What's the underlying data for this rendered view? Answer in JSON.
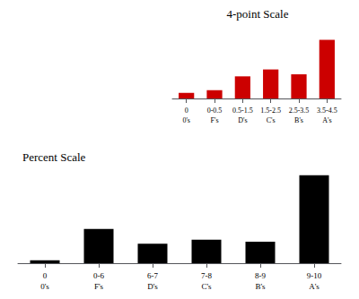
{
  "chart_data": [
    {
      "type": "bar",
      "title": "4-point Scale",
      "categories": [
        "0\n0's",
        "0-0.5\nF's",
        "0.5-1.5\nD's",
        "1.5-2.5\nC's",
        "2.5-3.5\nB's",
        "3.5-4.5\nA's"
      ],
      "values": [
        0.8,
        1.2,
        3.2,
        4.2,
        3.5,
        8.5
      ],
      "color": "#cc0000",
      "ylim": [
        0,
        10.625
      ],
      "tick_labels": "x",
      "grid": false
    },
    {
      "type": "bar",
      "title": "Percent Scale",
      "categories": [
        "0\n0's",
        "0-6\nF's",
        "6-7\nD's",
        "7-8\nC's",
        "8-9\nB's",
        "9-10\nA's"
      ],
      "values": [
        0.3,
        3.5,
        2.0,
        2.4,
        2.2,
        9.0
      ],
      "color": "#000000",
      "ylim": [
        0,
        9.9
      ],
      "tick_labels": "x",
      "grid": false
    }
  ]
}
